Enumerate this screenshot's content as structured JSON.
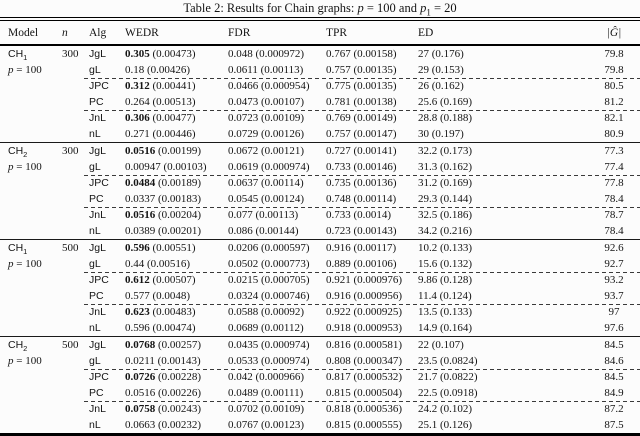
{
  "title": {
    "lead": "Table 2: Results for Chain graphs:",
    "p": "p",
    "eq1": "= 100 and",
    "p1base": "p",
    "p1sub": "1",
    "eq2": "= 20"
  },
  "header": {
    "model": "Model",
    "n": "n",
    "alg": "Alg",
    "wedr": "WEDR",
    "fdr": "FDR",
    "tpr": "TPR",
    "ed": "ED",
    "g": "|Ĝ|"
  },
  "colors": {
    "background": "#fcfcfc",
    "text": "#141414",
    "rule": "#000000"
  },
  "blocks": [
    {
      "model": {
        "base": "CH",
        "sub": "1"
      },
      "param": {
        "p": "p",
        "rest": " = 100"
      },
      "n": "300",
      "rows": [
        {
          "alg": "JgL",
          "wedr": "0.305",
          "wedr_se": "(0.00473)",
          "b": true,
          "fdr": "0.048",
          "fdr_se": "(0.000972)",
          "tpr": "0.767",
          "tpr_se": "(0.00158)",
          "ed": "27",
          "ed_se": "(0.176)",
          "g": "79.8"
        },
        {
          "alg": "gL",
          "wedr": "0.18",
          "wedr_se": "(0.00426)",
          "b": false,
          "fdr": "0.0611",
          "fdr_se": "(0.00113)",
          "tpr": "0.757",
          "tpr_se": "(0.00135)",
          "ed": "29",
          "ed_se": "(0.153)",
          "g": "79.8"
        },
        {
          "alg": "JPC",
          "wedr": "0.312",
          "wedr_se": "(0.00441)",
          "b": true,
          "fdr": "0.0466",
          "fdr_se": "(0.000954)",
          "tpr": "0.775",
          "tpr_se": "(0.00135)",
          "ed": "26",
          "ed_se": "(0.162)",
          "g": "80.5"
        },
        {
          "alg": "PC",
          "wedr": "0.264",
          "wedr_se": "(0.00513)",
          "b": false,
          "fdr": "0.0473",
          "fdr_se": "(0.00107)",
          "tpr": "0.781",
          "tpr_se": "(0.00138)",
          "ed": "25.6",
          "ed_se": "(0.169)",
          "g": "81.2"
        },
        {
          "alg": "JnL",
          "wedr": "0.306",
          "wedr_se": "(0.00477)",
          "b": true,
          "fdr": "0.0723",
          "fdr_se": "(0.00109)",
          "tpr": "0.769",
          "tpr_se": "(0.00149)",
          "ed": "28.8",
          "ed_se": "(0.188)",
          "g": "82.1"
        },
        {
          "alg": "nL",
          "wedr": "0.271",
          "wedr_se": "(0.00446)",
          "b": false,
          "fdr": "0.0729",
          "fdr_se": "(0.00126)",
          "tpr": "0.757",
          "tpr_se": "(0.00147)",
          "ed": "30",
          "ed_se": "(0.197)",
          "g": "80.9"
        }
      ]
    },
    {
      "model": {
        "base": "CH",
        "sub": "2"
      },
      "param": {
        "p": "p",
        "rest": " = 100"
      },
      "n": "300",
      "rows": [
        {
          "alg": "JgL",
          "wedr": "0.0516",
          "wedr_se": "(0.00199)",
          "b": true,
          "fdr": "0.0672",
          "fdr_se": "(0.00121)",
          "tpr": "0.727",
          "tpr_se": "(0.00141)",
          "ed": "32.2",
          "ed_se": "(0.173)",
          "g": "77.3"
        },
        {
          "alg": "gL",
          "wedr": "0.00947",
          "wedr_se": "(0.00103)",
          "b": false,
          "fdr": "0.0619",
          "fdr_se": "(0.000974)",
          "tpr": "0.733",
          "tpr_se": "(0.00146)",
          "ed": "31.3",
          "ed_se": "(0.162)",
          "g": "77.4"
        },
        {
          "alg": "JPC",
          "wedr": "0.0484",
          "wedr_se": "(0.00189)",
          "b": true,
          "fdr": "0.0637",
          "fdr_se": "(0.00114)",
          "tpr": "0.735",
          "tpr_se": "(0.00136)",
          "ed": "31.2",
          "ed_se": "(0.169)",
          "g": "77.8"
        },
        {
          "alg": "PC",
          "wedr": "0.0337",
          "wedr_se": "(0.00183)",
          "b": false,
          "fdr": "0.0545",
          "fdr_se": "(0.00124)",
          "tpr": "0.748",
          "tpr_se": "(0.00114)",
          "ed": "29.3",
          "ed_se": "(0.144)",
          "g": "78.4"
        },
        {
          "alg": "JnL",
          "wedr": "0.0516",
          "wedr_se": "(0.00204)",
          "b": true,
          "fdr": "0.077",
          "fdr_se": "(0.00113)",
          "tpr": "0.733",
          "tpr_se": "(0.0014)",
          "ed": "32.5",
          "ed_se": "(0.186)",
          "g": "78.7"
        },
        {
          "alg": "nL",
          "wedr": "0.0389",
          "wedr_se": "(0.00201)",
          "b": false,
          "fdr": "0.086",
          "fdr_se": "(0.00144)",
          "tpr": "0.723",
          "tpr_se": "(0.00143)",
          "ed": "34.2",
          "ed_se": "(0.216)",
          "g": "78.4"
        }
      ]
    },
    {
      "model": {
        "base": "CH",
        "sub": "1"
      },
      "param": {
        "p": "p",
        "rest": " = 100"
      },
      "n": "500",
      "rows": [
        {
          "alg": "JgL",
          "wedr": "0.596",
          "wedr_se": "(0.00551)",
          "b": true,
          "fdr": "0.0206",
          "fdr_se": "(0.000597)",
          "tpr": "0.916",
          "tpr_se": "(0.00117)",
          "ed": "10.2",
          "ed_se": "(0.133)",
          "g": "92.6"
        },
        {
          "alg": "gL",
          "wedr": "0.44",
          "wedr_se": "(0.00516)",
          "b": false,
          "fdr": "0.0502",
          "fdr_se": "(0.000773)",
          "tpr": "0.889",
          "tpr_se": "(0.00106)",
          "ed": "15.6",
          "ed_se": "(0.132)",
          "g": "92.7"
        },
        {
          "alg": "JPC",
          "wedr": "0.612",
          "wedr_se": "(0.00507)",
          "b": true,
          "fdr": "0.0215",
          "fdr_se": "(0.000705)",
          "tpr": "0.921",
          "tpr_se": "(0.000976)",
          "ed": "9.86",
          "ed_se": "(0.128)",
          "g": "93.2"
        },
        {
          "alg": "PC",
          "wedr": "0.577",
          "wedr_se": "(0.0048)",
          "b": false,
          "fdr": "0.0324",
          "fdr_se": "(0.000746)",
          "tpr": "0.916",
          "tpr_se": "(0.000956)",
          "ed": "11.4",
          "ed_se": "(0.124)",
          "g": "93.7"
        },
        {
          "alg": "JnL",
          "wedr": "0.623",
          "wedr_se": "(0.00483)",
          "b": true,
          "fdr": "0.0588",
          "fdr_se": "(0.00092)",
          "tpr": "0.922",
          "tpr_se": "(0.000925)",
          "ed": "13.5",
          "ed_se": "(0.133)",
          "g": "97"
        },
        {
          "alg": "nL",
          "wedr": "0.596",
          "wedr_se": "(0.00474)",
          "b": false,
          "fdr": "0.0689",
          "fdr_se": "(0.00112)",
          "tpr": "0.918",
          "tpr_se": "(0.000953)",
          "ed": "14.9",
          "ed_se": "(0.164)",
          "g": "97.6"
        }
      ]
    },
    {
      "model": {
        "base": "CH",
        "sub": "2"
      },
      "param": {
        "p": "p",
        "rest": " = 100"
      },
      "n": "500",
      "rows": [
        {
          "alg": "JgL",
          "wedr": "0.0768",
          "wedr_se": "(0.00257)",
          "b": true,
          "fdr": "0.0435",
          "fdr_se": "(0.000974)",
          "tpr": "0.816",
          "tpr_se": "(0.000581)",
          "ed": "22",
          "ed_se": "(0.107)",
          "g": "84.5"
        },
        {
          "alg": "gL",
          "wedr": "0.0211",
          "wedr_se": "(0.00143)",
          "b": false,
          "fdr": "0.0533",
          "fdr_se": "(0.000974)",
          "tpr": "0.808",
          "tpr_se": "(0.000347)",
          "ed": "23.5",
          "ed_se": "(0.0824)",
          "g": "84.6"
        },
        {
          "alg": "JPC",
          "wedr": "0.0726",
          "wedr_se": "(0.00228)",
          "b": true,
          "fdr": "0.042",
          "fdr_se": "(0.000966)",
          "tpr": "0.817",
          "tpr_se": "(0.000532)",
          "ed": "21.7",
          "ed_se": "(0.0822)",
          "g": "84.5"
        },
        {
          "alg": "PC",
          "wedr": "0.0516",
          "wedr_se": "(0.00226)",
          "b": false,
          "fdr": "0.0489",
          "fdr_se": "(0.00111)",
          "tpr": "0.815",
          "tpr_se": "(0.000504)",
          "ed": "22.5",
          "ed_se": "(0.0918)",
          "g": "84.9"
        },
        {
          "alg": "JnL",
          "wedr": "0.0758",
          "wedr_se": "(0.00243)",
          "b": true,
          "fdr": "0.0702",
          "fdr_se": "(0.00109)",
          "tpr": "0.818",
          "tpr_se": "(0.000536)",
          "ed": "24.2",
          "ed_se": "(0.102)",
          "g": "87.2"
        },
        {
          "alg": "nL",
          "wedr": "0.0663",
          "wedr_se": "(0.00232)",
          "b": false,
          "fdr": "0.0767",
          "fdr_se": "(0.00123)",
          "tpr": "0.815",
          "tpr_se": "(0.000555)",
          "ed": "25.1",
          "ed_se": "(0.126)",
          "g": "87.5"
        }
      ]
    }
  ]
}
